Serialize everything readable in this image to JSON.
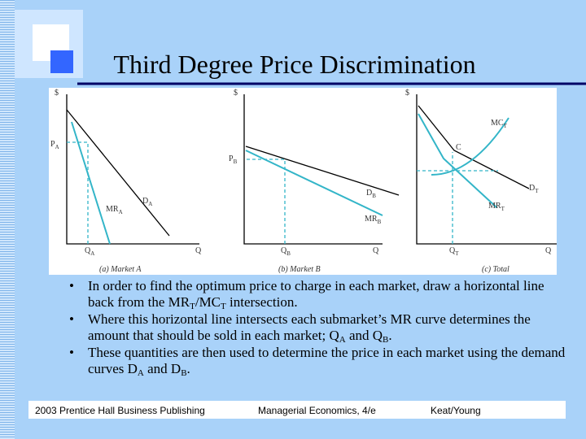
{
  "title": "Third Degree Price Discrimination",
  "figure": {
    "panels": [
      {
        "dollar": "$",
        "price": [
          "P",
          "A"
        ],
        "mr": [
          "MR",
          "A"
        ],
        "demand": [
          "D",
          "A"
        ],
        "quantity": [
          "Q",
          "A"
        ],
        "q": "Q",
        "caption": "(a) Market A"
      },
      {
        "dollar": "$",
        "price": [
          "P",
          "B"
        ],
        "mr": [
          "MR",
          "B"
        ],
        "demand": [
          "D",
          "B"
        ],
        "quantity": [
          "Q",
          "B"
        ],
        "q": "Q",
        "caption": "(b) Market B"
      },
      {
        "dollar": "$",
        "mc": [
          "MC",
          "T"
        ],
        "point": "C",
        "mr": [
          "MR",
          "T"
        ],
        "demand": [
          "D",
          "T"
        ],
        "quantity": [
          "Q",
          "T"
        ],
        "q": "Q",
        "caption": "(c) Total"
      }
    ]
  },
  "bullets": [
    [
      "In order to find the optimum price to charge in each market, draw a horizontal line back from the MR",
      "T",
      "/MC",
      "T",
      " intersection."
    ],
    [
      "Where this horizontal line intersects each submarket’s MR curve determines the amount that should be sold in each market; Q",
      "A",
      " and Q",
      "B",
      "."
    ],
    [
      "These quantities are then used to determine the price in each market using the demand curves D",
      "A",
      " and D",
      "B",
      "."
    ]
  ],
  "footer": {
    "left": "2003 Prentice Hall Business Publishing",
    "center": "Managerial Economics, 4/e",
    "right": "Keat/Young"
  }
}
